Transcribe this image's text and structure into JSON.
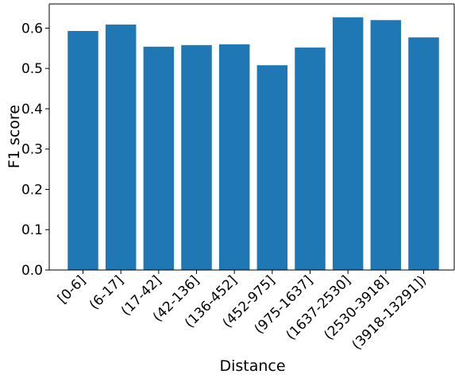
{
  "chart_data": {
    "type": "bar",
    "title": "",
    "xlabel": "Distance",
    "ylabel": "F1 score",
    "categories": [
      "[0-6]",
      "(6-17]",
      "(17-42]",
      "(42-136]",
      "(136-452]",
      "(452-975]",
      "(975-1637]",
      "(1637-2530]",
      "(2530-3918]",
      "(3918-13291])"
    ],
    "values": [
      0.593,
      0.609,
      0.554,
      0.558,
      0.56,
      0.508,
      0.552,
      0.627,
      0.62,
      0.577
    ],
    "ylim": [
      0,
      0.66
    ],
    "yticks": [
      0.0,
      0.1,
      0.2,
      0.3,
      0.4,
      0.5,
      0.6
    ],
    "ytick_labels": [
      "0.0",
      "0.1",
      "0.2",
      "0.3",
      "0.4",
      "0.5",
      "0.6"
    ],
    "grid": false,
    "legend": "none",
    "bar_color": "#1f77b4"
  }
}
